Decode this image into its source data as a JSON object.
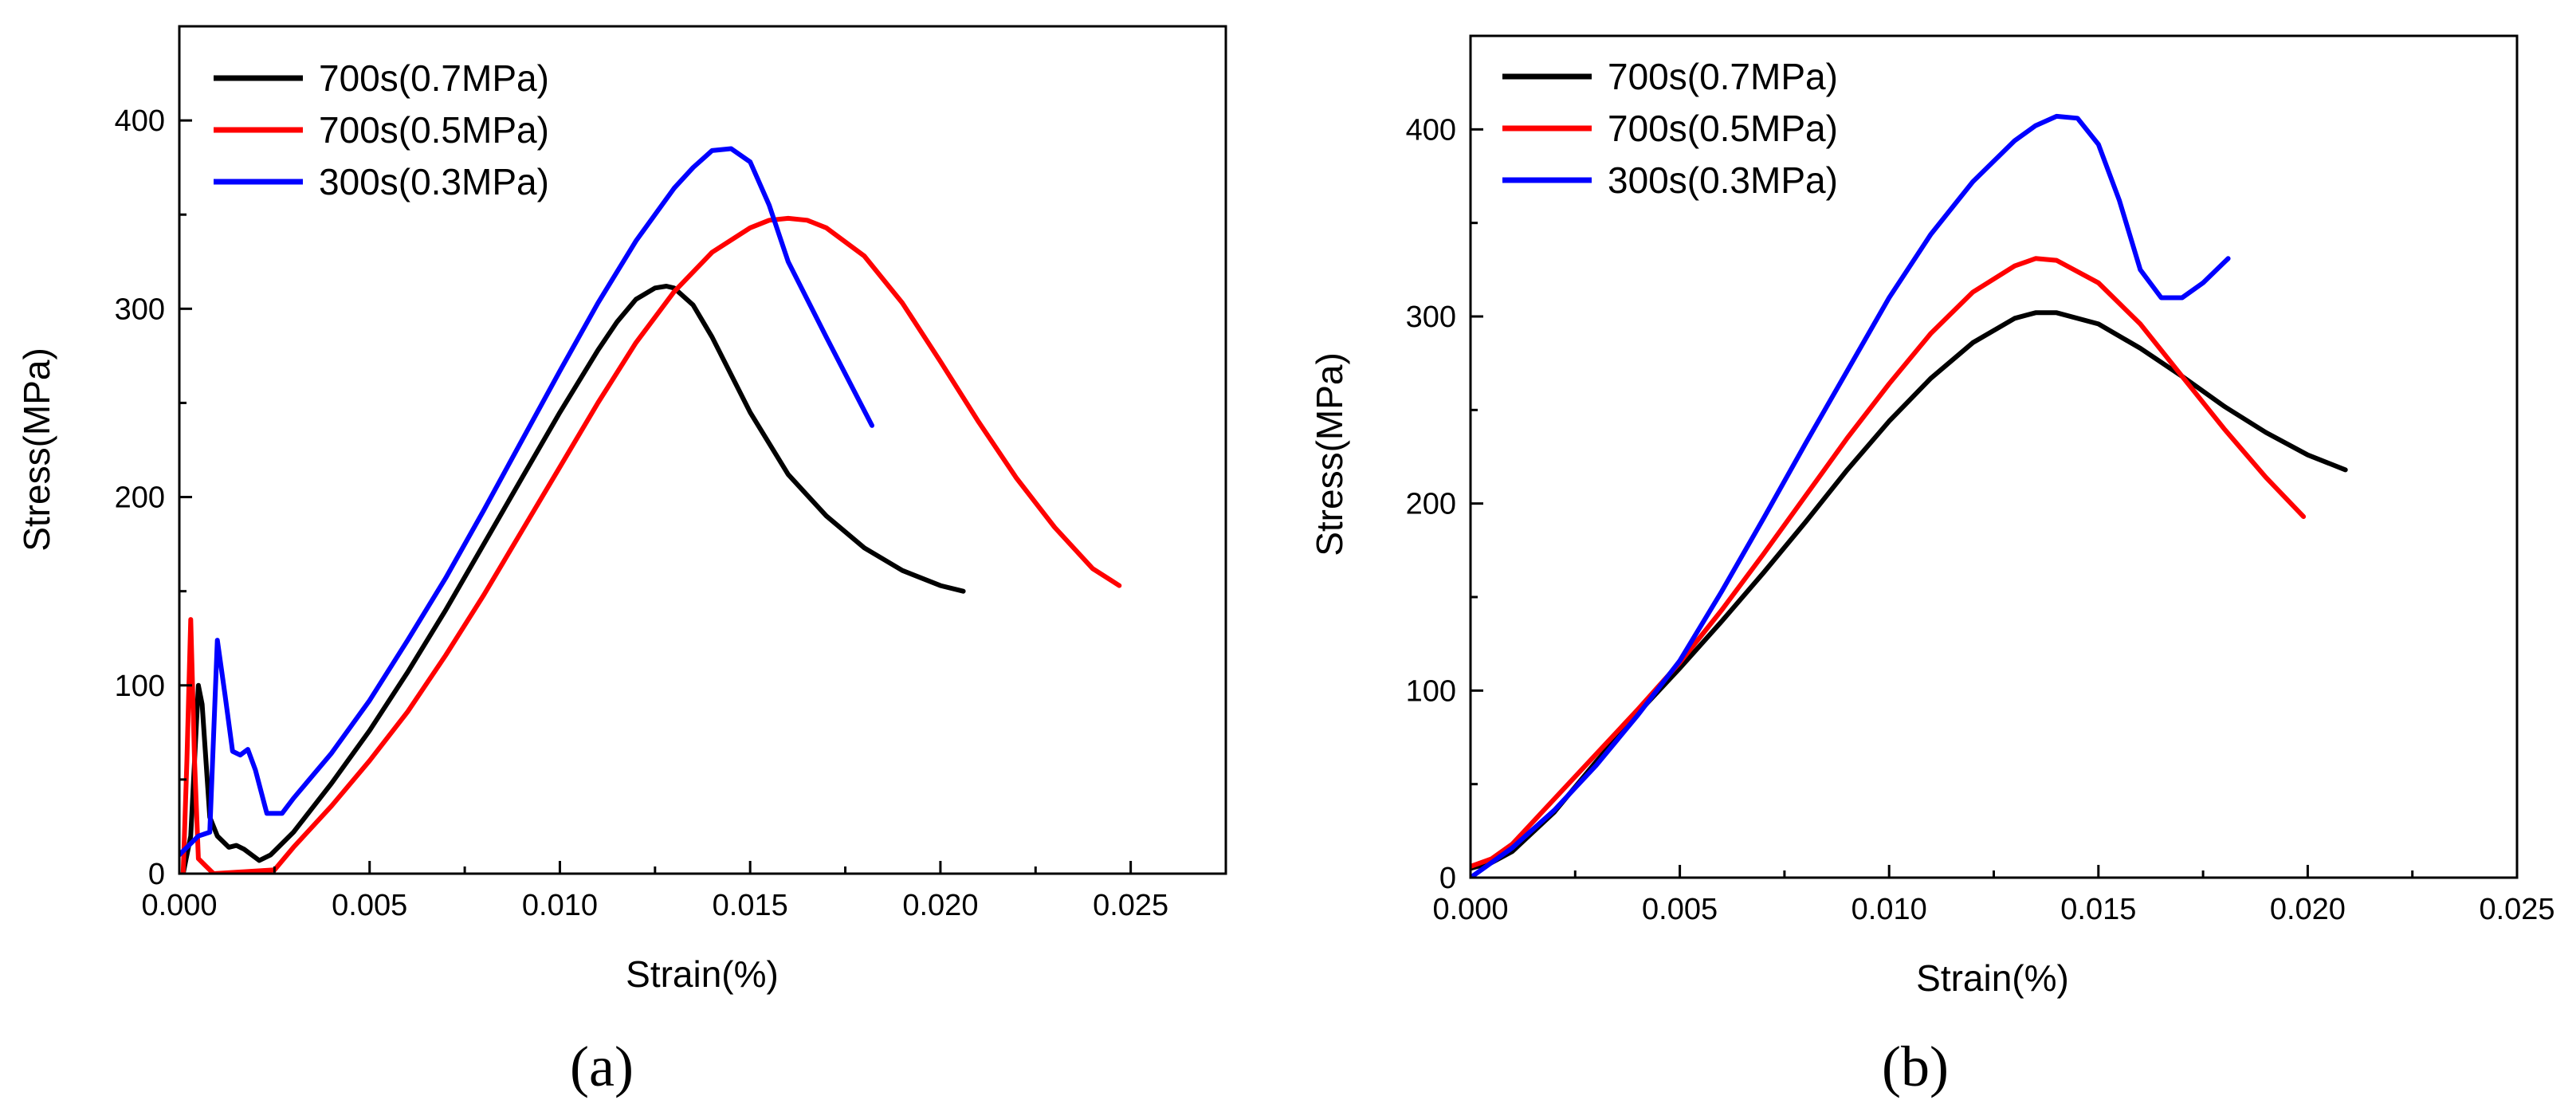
{
  "figure": {
    "panel_a_label": "(a)",
    "panel_b_label": "(b)"
  },
  "chart_data": [
    {
      "id": "a",
      "type": "line",
      "label": "(a)",
      "xlabel": "Strain(%)",
      "ylabel": "Stress(MPa)",
      "xlim": [
        0,
        0.0275
      ],
      "ylim": [
        0,
        450
      ],
      "xticks": [
        "0.000",
        "0.005",
        "0.010",
        "0.015",
        "0.020",
        "0.025"
      ],
      "xtick_values": [
        0,
        0.005,
        0.01,
        0.015,
        0.02,
        0.025
      ],
      "yticks": [
        "0",
        "100",
        "200",
        "300",
        "400"
      ],
      "ytick_values": [
        0,
        100,
        200,
        300,
        400
      ],
      "legend_position": "top-left",
      "series": [
        {
          "name": "700s(0.7MPa)",
          "color": "#000000",
          "x": [
            0.0001,
            0.0003,
            0.0005,
            0.0006,
            0.0008,
            0.001,
            0.0013,
            0.0015,
            0.0017,
            0.0019,
            0.0021,
            0.0024,
            0.003,
            0.004,
            0.005,
            0.006,
            0.007,
            0.008,
            0.009,
            0.01,
            0.011,
            0.0115,
            0.012,
            0.0125,
            0.0128,
            0.013,
            0.0135,
            0.014,
            0.015,
            0.016,
            0.017,
            0.018,
            0.019,
            0.02,
            0.0206
          ],
          "y": [
            0,
            20,
            100,
            90,
            30,
            20,
            14,
            15,
            13,
            10,
            7,
            10,
            22,
            48,
            76,
            107,
            140,
            175,
            210,
            245,
            278,
            293,
            305,
            311,
            312,
            311,
            302,
            285,
            245,
            212,
            190,
            173,
            161,
            153,
            150
          ]
        },
        {
          "name": "700s(0.5MPa)",
          "color": "#ff0000",
          "x": [
            0.0001,
            0.0002,
            0.0003,
            0.0004,
            0.0005,
            0.0007,
            0.0009,
            0.0025,
            0.003,
            0.004,
            0.005,
            0.006,
            0.007,
            0.008,
            0.009,
            0.01,
            0.011,
            0.012,
            0.013,
            0.014,
            0.015,
            0.0155,
            0.016,
            0.0165,
            0.017,
            0.018,
            0.019,
            0.02,
            0.021,
            0.022,
            0.023,
            0.024,
            0.0247
          ],
          "y": [
            0,
            60,
            135,
            60,
            8,
            4,
            0,
            2,
            14,
            36,
            60,
            86,
            116,
            148,
            182,
            216,
            250,
            282,
            309,
            330,
            343,
            347,
            348,
            347,
            343,
            328,
            303,
            272,
            240,
            210,
            184,
            162,
            153
          ]
        },
        {
          "name": "300s(0.3MPa)",
          "color": "#0000ff",
          "x": [
            0.0,
            0.0005,
            0.0008,
            0.001,
            0.0012,
            0.0014,
            0.0016,
            0.0018,
            0.002,
            0.0023,
            0.0027,
            0.003,
            0.004,
            0.005,
            0.006,
            0.007,
            0.008,
            0.009,
            0.01,
            0.011,
            0.012,
            0.013,
            0.0135,
            0.014,
            0.0145,
            0.015,
            0.0155,
            0.016,
            0.017,
            0.0182
          ],
          "y": [
            10,
            20,
            22,
            124,
            95,
            65,
            63,
            66,
            55,
            32,
            32,
            40,
            64,
            92,
            124,
            157,
            193,
            230,
            267,
            303,
            336,
            364,
            375,
            384,
            385,
            378,
            355,
            325,
            285,
            238
          ]
        }
      ]
    },
    {
      "id": "b",
      "type": "line",
      "label": "(b)",
      "xlabel": "Strain(%)",
      "ylabel": "Stress(MPa)",
      "xlim": [
        0,
        0.025
      ],
      "ylim": [
        0,
        450
      ],
      "xticks": [
        "0.000",
        "0.005",
        "0.010",
        "0.015",
        "0.020",
        "0.025"
      ],
      "xtick_values": [
        0,
        0.005,
        0.01,
        0.015,
        0.02,
        0.025
      ],
      "yticks": [
        "0",
        "100",
        "200",
        "300",
        "400"
      ],
      "ytick_values": [
        0,
        100,
        200,
        300,
        400
      ],
      "legend_position": "top-left",
      "series": [
        {
          "name": "700s(0.7MPa)",
          "color": "#000000",
          "x": [
            0.0,
            0.0005,
            0.001,
            0.002,
            0.003,
            0.004,
            0.005,
            0.006,
            0.007,
            0.008,
            0.009,
            0.01,
            0.011,
            0.012,
            0.013,
            0.0135,
            0.014,
            0.015,
            0.016,
            0.017,
            0.018,
            0.019,
            0.02,
            0.0209
          ],
          "y": [
            5,
            8,
            14,
            35,
            62,
            88,
            112,
            137,
            163,
            190,
            218,
            244,
            267,
            286,
            299,
            302,
            302,
            296,
            283,
            268,
            252,
            238,
            226,
            218
          ]
        },
        {
          "name": "700s(0.5MPa)",
          "color": "#ff0000",
          "x": [
            0.0,
            0.0005,
            0.001,
            0.002,
            0.003,
            0.004,
            0.005,
            0.006,
            0.007,
            0.008,
            0.009,
            0.01,
            0.011,
            0.012,
            0.013,
            0.0135,
            0.014,
            0.015,
            0.016,
            0.017,
            0.018,
            0.019,
            0.0199
          ],
          "y": [
            6,
            10,
            18,
            42,
            66,
            90,
            115,
            143,
            173,
            204,
            235,
            264,
            291,
            313,
            327,
            331,
            330,
            318,
            296,
            268,
            240,
            214,
            193
          ]
        },
        {
          "name": "300s(0.3MPa)",
          "color": "#0000ff",
          "x": [
            0.0,
            0.0005,
            0.001,
            0.002,
            0.003,
            0.004,
            0.005,
            0.006,
            0.007,
            0.008,
            0.009,
            0.01,
            0.011,
            0.012,
            0.013,
            0.0135,
            0.014,
            0.0145,
            0.015,
            0.0155,
            0.016,
            0.0165,
            0.017,
            0.0175,
            0.0181
          ],
          "y": [
            0,
            8,
            16,
            36,
            60,
            87,
            116,
            153,
            192,
            232,
            271,
            310,
            344,
            372,
            394,
            402,
            407,
            406,
            392,
            362,
            325,
            310,
            310,
            318,
            331
          ]
        }
      ]
    }
  ]
}
